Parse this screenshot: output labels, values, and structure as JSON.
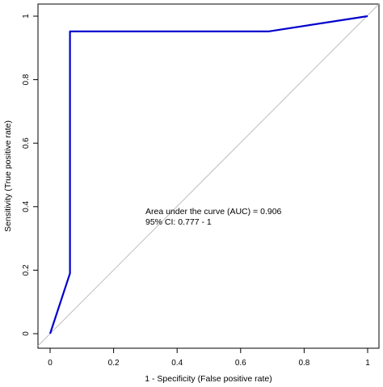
{
  "chart_data": {
    "type": "line",
    "title": "",
    "xlabel": "1 - Specificity (False positive rate)",
    "ylabel": "Sensitivity (True positive rate)",
    "xlim": [
      0,
      1
    ],
    "ylim": [
      0,
      1
    ],
    "x_ticks": [
      0,
      0.2,
      0.4,
      0.6,
      0.8,
      1
    ],
    "y_ticks": [
      0,
      0.2,
      0.4,
      0.6,
      0.8,
      1
    ],
    "x_tick_labels": [
      "0",
      "0.2",
      "0.4",
      "0.6",
      "0.8",
      "1"
    ],
    "y_tick_labels": [
      "0",
      "0.2",
      "0.4",
      "0.6",
      "0.8",
      "1"
    ],
    "grid": false,
    "series": [
      {
        "x": [
          0,
          0.0625,
          0.0625,
          0.0625,
          0.6875,
          1
        ],
        "y": [
          0,
          0.19,
          0.19,
          0.952,
          0.952,
          1
        ],
        "color": "#0000cd"
      }
    ],
    "reference_line": {
      "x": [
        0,
        1
      ],
      "y": [
        0,
        1
      ],
      "color": "#bebebe"
    },
    "annotations": [
      "Area under the curve (AUC) = 0.906",
      "95% CI: 0.777 - 1"
    ]
  }
}
